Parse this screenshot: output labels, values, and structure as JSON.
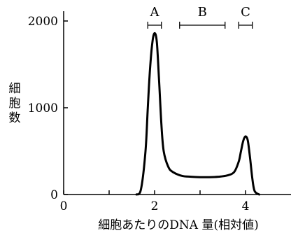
{
  "chart_data": {
    "type": "line",
    "xlabel": "細胞あたりのDNA 量(相対値)",
    "ylabel": "細胞数",
    "xlim": [
      0,
      5
    ],
    "ylim": [
      0,
      2000
    ],
    "x_ticks": [
      {
        "value": 0,
        "label": "0"
      },
      {
        "value": 1,
        "label": ""
      },
      {
        "value": 2,
        "label": "2"
      },
      {
        "value": 3,
        "label": ""
      },
      {
        "value": 4,
        "label": "4"
      }
    ],
    "y_ticks": [
      {
        "value": 0,
        "label": "0"
      },
      {
        "value": 1000,
        "label": "1000"
      },
      {
        "value": 2000,
        "label": "2000"
      }
    ],
    "grid": false,
    "series": [
      {
        "x": [
          1.6,
          1.7,
          1.8,
          1.85,
          1.9,
          1.95,
          2.0,
          2.05,
          2.1,
          2.15,
          2.2,
          2.3,
          2.4,
          2.6,
          2.8,
          3.0,
          3.2,
          3.4,
          3.6,
          3.75,
          3.85,
          3.9,
          3.95,
          4.0,
          4.05,
          4.1,
          4.15,
          4.2,
          4.3
        ],
        "y": [
          0,
          60,
          500,
          1000,
          1450,
          1750,
          1860,
          1750,
          1300,
          800,
          500,
          320,
          260,
          215,
          205,
          200,
          200,
          205,
          220,
          260,
          380,
          500,
          620,
          670,
          620,
          420,
          180,
          40,
          0
        ]
      }
    ],
    "ranges": [
      {
        "label": "A",
        "from": 1.85,
        "to": 2.15
      },
      {
        "label": "B",
        "from": 2.55,
        "to": 3.55
      },
      {
        "label": "C",
        "from": 3.85,
        "to": 4.15
      }
    ]
  }
}
